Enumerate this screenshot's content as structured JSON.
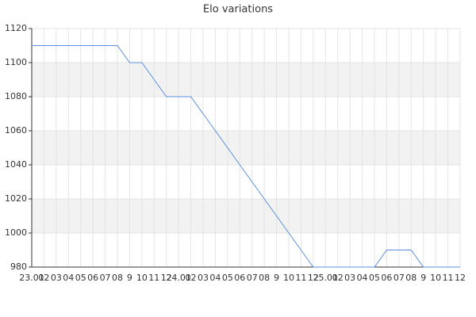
{
  "chart_data": {
    "type": "line",
    "title": "Elo variations",
    "categories": [
      "23.01",
      "02",
      "03",
      "04",
      "05",
      "06",
      "07",
      "08",
      "9",
      "10",
      "11",
      "12",
      "24.01",
      "02",
      "03",
      "04",
      "05",
      "06",
      "07",
      "08",
      "9",
      "10",
      "11",
      "12",
      "25.01",
      "02",
      "03",
      "04",
      "05",
      "06",
      "07",
      "08",
      "9",
      "10",
      "11",
      "12"
    ],
    "series": [
      {
        "name": "Elo",
        "color": "#5b8fde",
        "values": [
          1110,
          1110,
          1110,
          1110,
          1110,
          1110,
          1110,
          1110,
          1100,
          1100,
          1090,
          1080,
          1080,
          1080,
          1070,
          1060,
          1050,
          1040,
          1030,
          1020,
          1010,
          1000,
          990,
          980,
          980,
          980,
          980,
          980,
          980,
          990,
          990,
          990,
          980,
          980,
          980,
          980
        ]
      }
    ],
    "ylim": [
      980,
      1120
    ],
    "yticks": [
      980,
      1000,
      1020,
      1040,
      1060,
      1080,
      1100,
      1120
    ],
    "grid": true
  }
}
